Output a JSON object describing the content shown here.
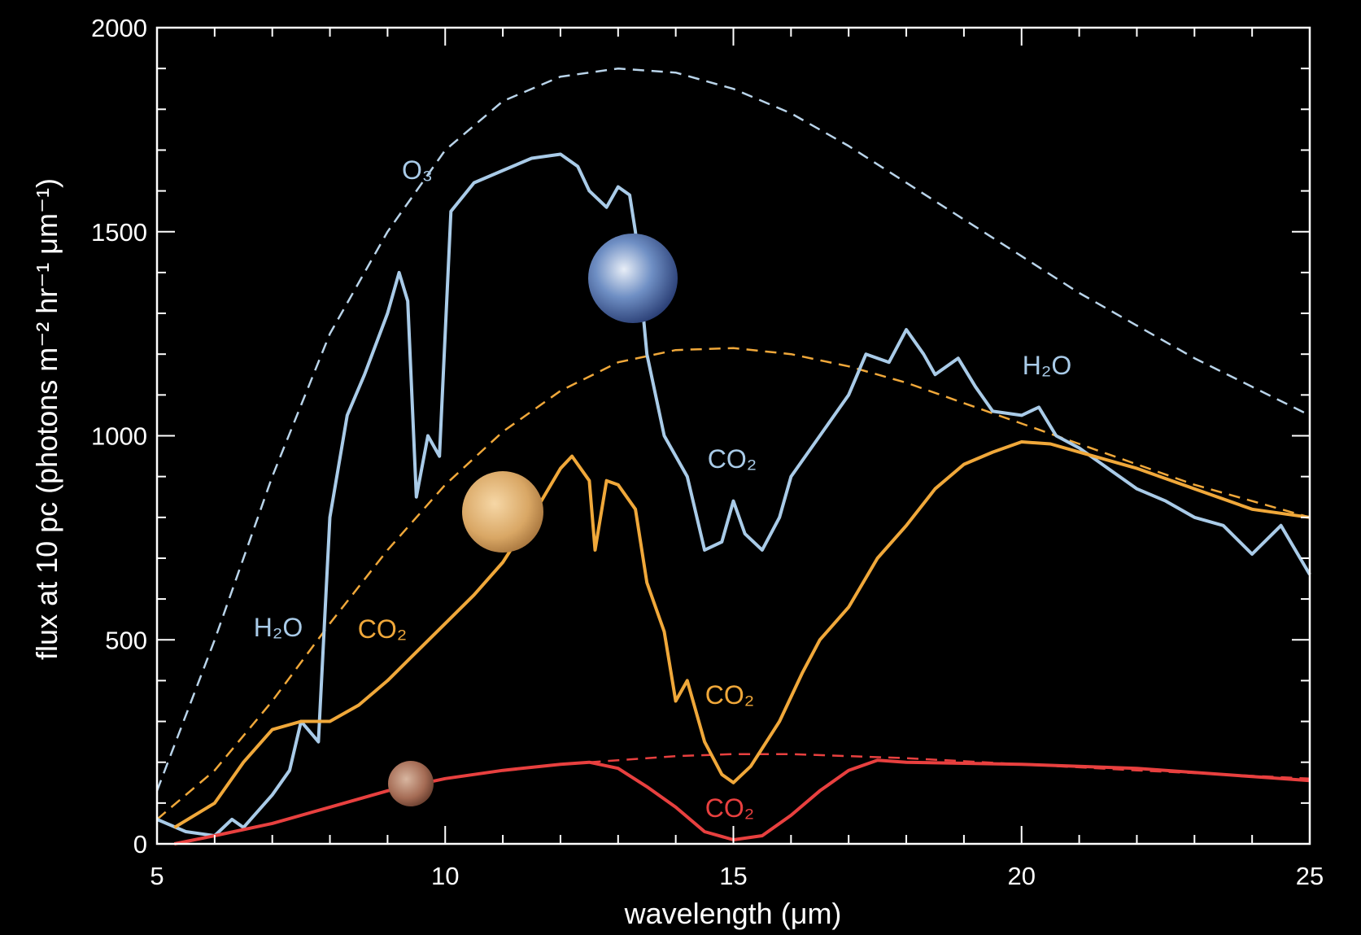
{
  "chart_data": {
    "type": "line",
    "x_label": "wavelength (μm)",
    "y_label": "flux at 10 pc (photons m⁻² hr⁻¹ μm⁻¹)",
    "xlim": [
      5,
      25
    ],
    "ylim": [
      0,
      2000
    ],
    "xticks": [
      5,
      10,
      15,
      20,
      25
    ],
    "yticks": [
      0,
      500,
      1000,
      1500,
      2000
    ],
    "minor_xticks": [
      6,
      7,
      8,
      9,
      11,
      12,
      13,
      14,
      16,
      17,
      18,
      19,
      21,
      22,
      23,
      24
    ],
    "minor_yticks": [
      100,
      200,
      300,
      400,
      600,
      700,
      800,
      900,
      1100,
      1200,
      1300,
      1400,
      1600,
      1700,
      1800,
      1900
    ],
    "series": [
      {
        "color": "#b9d4ea",
        "dashed": true,
        "x": [
          5,
          6,
          7,
          8,
          9,
          10,
          11,
          12,
          13,
          14,
          15,
          16,
          17,
          18,
          19,
          20,
          21,
          22,
          23,
          24,
          25
        ],
        "values": [
          130,
          500,
          900,
          1250,
          1500,
          1700,
          1820,
          1880,
          1900,
          1890,
          1850,
          1790,
          1710,
          1620,
          1530,
          1440,
          1350,
          1270,
          1190,
          1120,
          1050
        ]
      },
      {
        "color": "#f0a83a",
        "dashed": true,
        "x": [
          5,
          6,
          7,
          8,
          9,
          10,
          11,
          12,
          13,
          14,
          15,
          16,
          17,
          18,
          19,
          20,
          21,
          22,
          23,
          24,
          25
        ],
        "values": [
          60,
          180,
          350,
          540,
          720,
          880,
          1010,
          1110,
          1180,
          1210,
          1215,
          1200,
          1170,
          1130,
          1080,
          1030,
          980,
          930,
          880,
          840,
          800
        ]
      },
      {
        "color": "#e8403f",
        "dashed": true,
        "x": [
          12.5,
          13,
          14,
          15,
          16,
          17,
          18,
          20,
          22,
          25
        ],
        "values": [
          200,
          205,
          215,
          220,
          220,
          215,
          210,
          195,
          180,
          160
        ]
      },
      {
        "color": "#a9cbe8",
        "dashed": false,
        "x": [
          5,
          5.5,
          6,
          6.3,
          6.5,
          7,
          7.3,
          7.5,
          7.8,
          8,
          8.3,
          8.6,
          9,
          9.2,
          9.35,
          9.5,
          9.7,
          9.9,
          10.1,
          10.5,
          11,
          11.5,
          12,
          12.3,
          12.5,
          12.8,
          13,
          13.2,
          13.3,
          13.5,
          13.8,
          14.2,
          14.5,
          14.8,
          15,
          15.2,
          15.5,
          15.8,
          16,
          16.5,
          17,
          17.3,
          17.7,
          18,
          18.3,
          18.5,
          18.9,
          19.2,
          19.5,
          20,
          20.3,
          20.6,
          21,
          21.5,
          22,
          22.5,
          23,
          23.5,
          24,
          24.5,
          25
        ],
        "values": [
          60,
          30,
          20,
          60,
          40,
          120,
          180,
          300,
          250,
          800,
          1050,
          1150,
          1300,
          1400,
          1330,
          850,
          1000,
          950,
          1550,
          1620,
          1650,
          1680,
          1690,
          1660,
          1600,
          1560,
          1610,
          1590,
          1500,
          1200,
          1000,
          900,
          720,
          740,
          840,
          760,
          720,
          800,
          900,
          1000,
          1100,
          1200,
          1180,
          1260,
          1200,
          1150,
          1190,
          1120,
          1060,
          1050,
          1070,
          1000,
          970,
          920,
          870,
          840,
          800,
          780,
          710,
          780,
          660
        ]
      },
      {
        "color": "#f0a83a",
        "dashed": false,
        "x": [
          5.3,
          6,
          6.5,
          7,
          7.5,
          8,
          8.5,
          9,
          9.5,
          10,
          10.5,
          11,
          11.5,
          12,
          12.2,
          12.5,
          12.6,
          12.8,
          13,
          13.3,
          13.5,
          13.8,
          14,
          14.2,
          14.5,
          14.8,
          15,
          15.3,
          15.8,
          16.2,
          16.5,
          17,
          17.5,
          18,
          18.5,
          19,
          19.5,
          20,
          20.5,
          21,
          22,
          23,
          24,
          25
        ],
        "values": [
          40,
          100,
          200,
          280,
          300,
          300,
          340,
          400,
          470,
          540,
          610,
          690,
          800,
          920,
          950,
          890,
          720,
          890,
          880,
          820,
          640,
          520,
          350,
          400,
          250,
          170,
          150,
          190,
          300,
          420,
          500,
          580,
          700,
          780,
          870,
          930,
          960,
          985,
          980,
          960,
          920,
          870,
          820,
          800
        ]
      },
      {
        "color": "#e8403f",
        "dashed": false,
        "x": [
          5.3,
          6,
          7,
          8,
          9,
          10,
          11,
          12,
          12.5,
          13,
          13.5,
          14,
          14.5,
          15,
          15.5,
          16,
          16.5,
          17,
          17.5,
          18,
          20,
          22,
          24,
          25
        ],
        "values": [
          0,
          20,
          50,
          90,
          130,
          160,
          180,
          195,
          200,
          185,
          140,
          90,
          30,
          10,
          20,
          70,
          130,
          180,
          205,
          200,
          195,
          185,
          165,
          155
        ]
      }
    ],
    "annotations": [
      {
        "text": "O₃",
        "color": "#a9cbe8"
      },
      {
        "text": "H₂O",
        "color": "#a9cbe8"
      },
      {
        "text": "CO₂",
        "color": "#f0a83a"
      },
      {
        "text": "CO₂",
        "color": "#a9cbe8"
      },
      {
        "text": "H₂O",
        "color": "#a9cbe8"
      },
      {
        "text": "CO₂",
        "color": "#f0a83a"
      },
      {
        "text": "CO₂",
        "color": "#e8403f"
      }
    ]
  }
}
